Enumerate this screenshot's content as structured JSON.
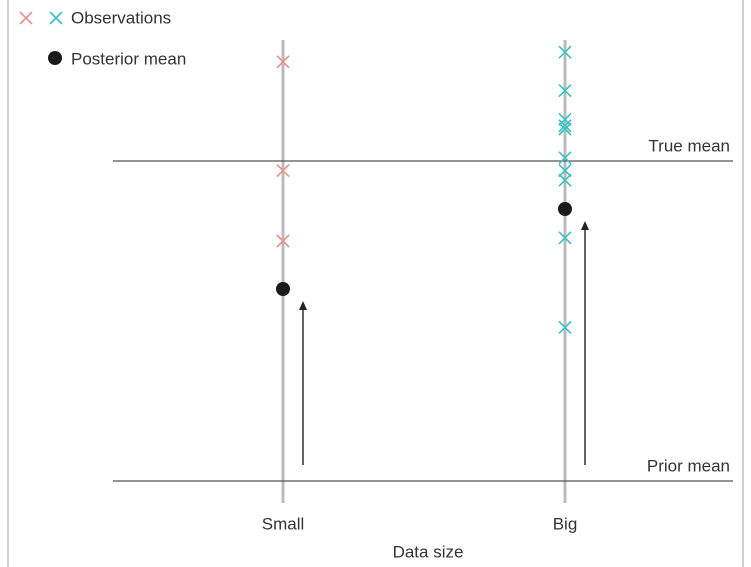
{
  "chart_data": {
    "type": "dot",
    "x_label": "Data size",
    "categories": [
      "Small",
      "Big"
    ],
    "ylim": [
      -0.1,
      1.4
    ],
    "observations": {
      "name": "Observations",
      "colors": [
        "#e8908f",
        "#3bbfc4"
      ],
      "values": [
        [
          1.31,
          0.97,
          0.75
        ],
        [
          1.34,
          1.22,
          1.13,
          1.11,
          1.1,
          1.01,
          0.97,
          0.94,
          0.76,
          0.48
        ]
      ]
    },
    "posterior": {
      "name": "Posterior mean",
      "color": "#1a1a1a",
      "values": [
        0.6,
        0.85
      ]
    },
    "reference_lines": [
      {
        "label": "True mean",
        "value": 1
      },
      {
        "label": "Prior mean",
        "value": 0
      }
    ]
  }
}
